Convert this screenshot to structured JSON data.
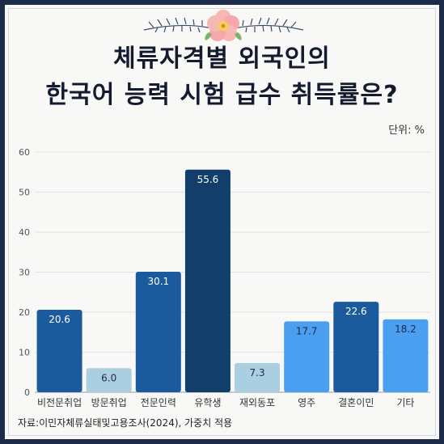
{
  "title_line1": "체류자격별 외국인의",
  "title_line2": "한국어 능력 시험 급수 취득률은?",
  "unit": "단위: %",
  "source": "자료:이민자체류실태및고용조사(2024), 가중치 적용",
  "chart_data": {
    "type": "bar",
    "title": "체류자격별 외국인의 한국어 능력 시험 급수 취득률은?",
    "categories": [
      "비전문취업",
      "방문취업",
      "전문인력",
      "유학생",
      "재외동포",
      "영주",
      "결혼이민",
      "기타"
    ],
    "values": [
      20.6,
      6.0,
      30.1,
      55.6,
      7.3,
      17.7,
      22.6,
      18.2
    ],
    "value_labels": [
      "20.6",
      "6.0",
      "30.1",
      "55.6",
      "7.3",
      "17.7",
      "22.6",
      "18.2"
    ],
    "colors": [
      "#1b5a9c",
      "#aacfe0",
      "#1b5a9c",
      "#123e6c",
      "#aacfe0",
      "#4a9ff0",
      "#1b5a9c",
      "#4a9ff0"
    ],
    "label_colors": [
      "#ffffff",
      "#1d2a4a",
      "#ffffff",
      "#ffffff",
      "#1d2a4a",
      "#1d2a4a",
      "#ffffff",
      "#1d2a4a"
    ],
    "ylim": [
      0,
      60
    ],
    "yticks": [
      "0",
      "10",
      "20",
      "30",
      "40",
      "50",
      "60"
    ],
    "ytick_values": [
      0,
      10,
      20,
      30,
      40,
      50,
      60
    ],
    "grid": true,
    "xlabel": "",
    "ylabel": ""
  }
}
